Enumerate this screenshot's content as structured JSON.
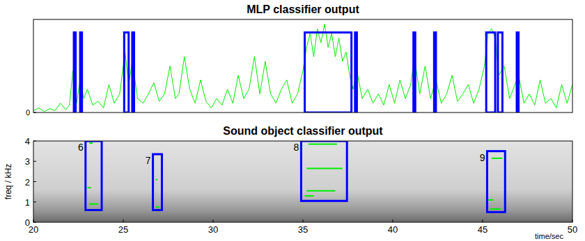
{
  "chart_data": [
    {
      "type": "line",
      "title": "MLP classifier output",
      "xlim": [
        20,
        50
      ],
      "ylim": [
        0,
        1
      ],
      "yticks": [
        0
      ],
      "tick_labels": "y",
      "x": [
        20,
        20.3,
        20.6,
        20.9,
        21.2,
        21.5,
        21.8,
        22.0,
        22.2,
        22.4,
        22.6,
        22.8,
        23.0,
        23.3,
        23.6,
        23.9,
        24.2,
        24.5,
        24.8,
        25.1,
        25.3,
        25.5,
        25.8,
        26.1,
        26.4,
        26.7,
        27.0,
        27.3,
        27.6,
        27.9,
        28.1,
        28.4,
        28.7,
        29.0,
        29.3,
        29.6,
        29.9,
        30.2,
        30.5,
        30.8,
        31.1,
        31.4,
        31.7,
        32.0,
        32.3,
        32.6,
        32.9,
        33.2,
        33.5,
        33.8,
        34.1,
        34.4,
        34.7,
        35.0,
        35.2,
        35.4,
        35.6,
        35.8,
        36.0,
        36.2,
        36.4,
        36.6,
        36.8,
        37.0,
        37.2,
        37.4,
        37.6,
        37.8,
        38.0,
        38.3,
        38.6,
        38.9,
        39.2,
        39.5,
        39.8,
        40.1,
        40.4,
        40.7,
        41.0,
        41.2,
        41.5,
        41.8,
        42.1,
        42.4,
        42.7,
        43.0,
        43.3,
        43.6,
        43.9,
        44.2,
        44.5,
        44.8,
        45.1,
        45.3,
        45.5,
        45.7,
        45.9,
        46.2,
        46.5,
        46.8,
        47.0,
        47.3,
        47.6,
        47.9,
        48.2,
        48.5,
        48.8,
        49.1,
        49.4,
        49.7,
        50.0
      ],
      "series": [
        {
          "color": "#00ee00",
          "values": [
            0.02,
            0.05,
            0.01,
            0.04,
            0.02,
            0.1,
            0.03,
            0.08,
            0.45,
            0.1,
            0.35,
            0.15,
            0.25,
            0.08,
            0.12,
            0.05,
            0.3,
            0.1,
            0.2,
            0.65,
            0.3,
            0.55,
            0.15,
            0.1,
            0.2,
            0.32,
            0.12,
            0.2,
            0.5,
            0.15,
            0.2,
            0.6,
            0.25,
            0.1,
            0.35,
            0.12,
            0.05,
            0.15,
            0.08,
            0.25,
            0.1,
            0.4,
            0.15,
            0.25,
            0.6,
            0.2,
            0.55,
            0.2,
            0.1,
            0.25,
            0.35,
            0.1,
            0.2,
            0.45,
            0.7,
            0.85,
            0.6,
            0.9,
            0.75,
            0.95,
            0.7,
            0.85,
            0.6,
            0.8,
            0.55,
            0.65,
            0.4,
            0.25,
            0.45,
            0.15,
            0.25,
            0.1,
            0.2,
            0.08,
            0.3,
            0.1,
            0.35,
            0.15,
            0.3,
            0.6,
            0.2,
            0.5,
            0.15,
            0.35,
            0.1,
            0.2,
            0.4,
            0.12,
            0.2,
            0.3,
            0.1,
            0.25,
            0.5,
            0.85,
            0.9,
            0.8,
            0.4,
            0.5,
            0.15,
            0.3,
            0.4,
            0.1,
            0.2,
            0.08,
            0.35,
            0.1,
            0.15,
            0.05,
            0.3,
            0.1,
            0.3
          ]
        }
      ],
      "detections": [
        {
          "x0": 22.25,
          "x1": 22.35,
          "y": 0.86,
          "color": "#0000ff"
        },
        {
          "x0": 22.6,
          "x1": 22.7,
          "y": 0.86,
          "color": "#0000ff"
        },
        {
          "x0": 25.05,
          "x1": 25.3,
          "y": 0.86,
          "color": "#0000ff"
        },
        {
          "x0": 25.5,
          "x1": 25.6,
          "y": 0.86,
          "color": "#0000ff"
        },
        {
          "x0": 35.1,
          "x1": 37.7,
          "y": 0.86,
          "color": "#0000ff"
        },
        {
          "x0": 37.9,
          "x1": 38.0,
          "y": 0.86,
          "color": "#0000ff"
        },
        {
          "x0": 41.15,
          "x1": 41.25,
          "y": 0.86,
          "color": "#0000ff"
        },
        {
          "x0": 42.3,
          "x1": 42.4,
          "y": 0.86,
          "color": "#0000ff"
        },
        {
          "x0": 45.2,
          "x1": 45.7,
          "y": 0.86,
          "color": "#0000ff"
        },
        {
          "x0": 45.85,
          "x1": 46.1,
          "y": 0.86,
          "color": "#0000ff"
        },
        {
          "x0": 46.9,
          "x1": 47.0,
          "y": 0.86,
          "color": "#0000ff"
        }
      ]
    },
    {
      "type": "spectrogram",
      "title": "Sound object classifier output",
      "xlabel": "time/sec",
      "ylabel": "freq / kHz",
      "xlim": [
        20,
        50
      ],
      "ylim": [
        0,
        4
      ],
      "xticks": [
        20,
        25,
        30,
        35,
        40,
        45,
        50
      ],
      "yticks": [
        0,
        1,
        2,
        3,
        4
      ],
      "boxes": [
        {
          "label": "6",
          "x0": 22.9,
          "x1": 23.8,
          "y0": 0.6,
          "y1": 4,
          "color": "#0000ff",
          "tracks": [
            {
              "x0": 23.1,
              "x1": 23.3,
              "freq": 3.9
            },
            {
              "x0": 23.0,
              "x1": 23.2,
              "freq": 1.7
            },
            {
              "x0": 23.1,
              "x1": 23.6,
              "freq": 0.9
            }
          ]
        },
        {
          "label": "7",
          "x0": 26.65,
          "x1": 27.15,
          "y0": 0.6,
          "y1": 3.35,
          "color": "#0000ff",
          "tracks": [
            {
              "x0": 26.8,
              "x1": 26.9,
              "freq": 2.1
            },
            {
              "x0": 26.8,
              "x1": 27.0,
              "freq": 0.75
            }
          ]
        },
        {
          "label": "8",
          "x0": 34.9,
          "x1": 37.45,
          "y0": 1.05,
          "y1": 4,
          "color": "#0000ff",
          "tracks": [
            {
              "x0": 35.3,
              "x1": 36.9,
              "freq": 3.85
            },
            {
              "x0": 35.2,
              "x1": 37.2,
              "freq": 2.65
            },
            {
              "x0": 35.2,
              "x1": 36.8,
              "freq": 1.55
            },
            {
              "x0": 35.1,
              "x1": 35.6,
              "freq": 1.3
            }
          ]
        },
        {
          "label": "9",
          "x0": 45.25,
          "x1": 46.25,
          "y0": 0.5,
          "y1": 3.5,
          "color": "#0000ff",
          "tracks": [
            {
              "x0": 45.5,
              "x1": 46.1,
              "freq": 3.15
            },
            {
              "x0": 45.3,
              "x1": 45.6,
              "freq": 1.1
            },
            {
              "x0": 45.4,
              "x1": 46.0,
              "freq": 0.65
            }
          ]
        }
      ]
    }
  ]
}
